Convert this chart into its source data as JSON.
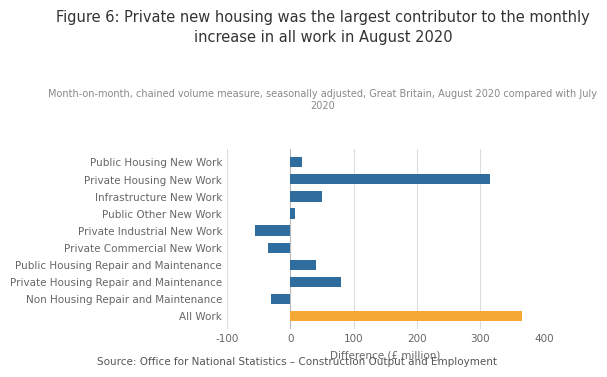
{
  "title": "Figure 6: Private new housing was the largest contributor to the monthly\nincrease in all work in August 2020",
  "subtitle": "Month-on-month, chained volume measure, seasonally adjusted, Great Britain, August 2020 compared with July\n2020",
  "source": "Source: Office for National Statistics – Construction Output and Employment",
  "xlabel": "Difference (£ million)",
  "categories": [
    "Public Housing New Work",
    "Private Housing New Work",
    "Infrastructure New Work",
    "Public Other New Work",
    "Private Industrial New Work",
    "Private Commercial New Work",
    "Public Housing Repair and Maintenance",
    "Private Housing Repair and Maintenance",
    "Non Housing Repair and Maintenance",
    "All Work"
  ],
  "values": [
    18,
    315,
    50,
    8,
    -55,
    -35,
    40,
    80,
    -30,
    365
  ],
  "bar_colors": [
    "#2e6d9e",
    "#2e6d9e",
    "#2e6d9e",
    "#2e6d9e",
    "#2e6d9e",
    "#2e6d9e",
    "#2e6d9e",
    "#2e6d9e",
    "#2e6d9e",
    "#f5a833"
  ],
  "xlim": [
    -100,
    400
  ],
  "xticks": [
    -100,
    0,
    100,
    200,
    300,
    400
  ],
  "background_color": "#ffffff",
  "grid_color": "#dddddd",
  "title_fontsize": 10.5,
  "subtitle_fontsize": 7.0,
  "label_fontsize": 7.5,
  "tick_fontsize": 7.5,
  "source_fontsize": 7.5
}
